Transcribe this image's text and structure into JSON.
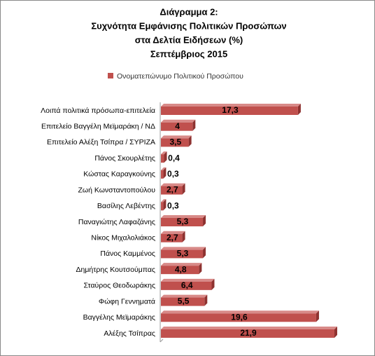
{
  "chart_data": {
    "type": "bar",
    "orientation": "horizontal",
    "title": [
      "Διάγραμμα 2:",
      "Συχνότητα Εμφάνισης Πολιτικών Προσώπων",
      "στα Δελτία Ειδήσεων (%)",
      "Σεπτέμβριος 2015"
    ],
    "categories": [
      "Λοιπά πολιτικά πρόσωπα-επιτελεία",
      "Επιτελείο Βαγγέλη Μεϊμαράκη / ΝΔ",
      "Επιτελείο Αλέξη Τσίπρα / ΣΥΡΙΖΑ",
      "Πάνος Σκουρλέτης",
      "Κώστας Καραγκούνης",
      "Ζωή Κωνσταντοπούλου",
      "Βασίλης Λεβέντης",
      "Παναγιώτης Λαφαζάνης",
      "Νίκος Μιχαλολιάκος",
      "Πάνος Καμμένος",
      "Δημήτρης Κουτσούμπας",
      "Σταύρος Θεοδωράκης",
      "Φώφη Γεννηματά",
      "Βαγγέλης Μεϊμαράκης",
      "Αλέξης Τσίπρας"
    ],
    "series": [
      {
        "name": "Ονοματεπώνυμο Πολιτικού Προσώπου",
        "color": "#c0504d",
        "values": [
          17.3,
          4,
          3.5,
          0.4,
          0.3,
          2.7,
          0.3,
          5.3,
          2.7,
          5.3,
          4.8,
          6.4,
          5.5,
          19.6,
          21.9
        ],
        "value_labels": [
          "17,3",
          "4",
          "3,5",
          "0,4",
          "0,3",
          "2,7",
          "0,3",
          "5,3",
          "2,7",
          "5,3",
          "4,8",
          "6,4",
          "5,5",
          "19,6",
          "21,9"
        ]
      }
    ]
  }
}
